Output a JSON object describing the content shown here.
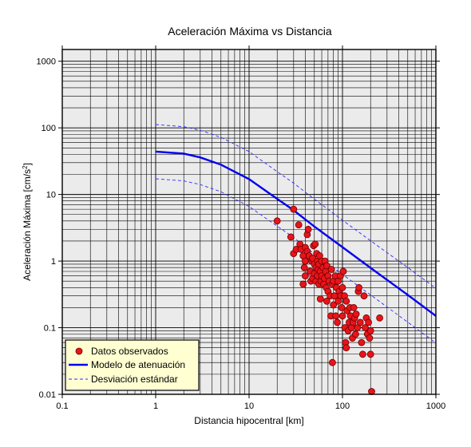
{
  "chart_data": {
    "type": "scatter",
    "title": "Aceleración Máxima vs Distancia",
    "xlabel": "Distancia hipocentral [km]",
    "ylabel_text": "Aceleración Máxima [cm/s",
    "ylabel_sup": "2",
    "ylabel_close": "]",
    "xscale": "log",
    "yscale": "log",
    "xlim": [
      0.1,
      1000
    ],
    "ylim": [
      0.01,
      1500
    ],
    "x_ticks": [
      0.1,
      1,
      10,
      100,
      1000
    ],
    "x_tick_labels": [
      "0.1",
      "1",
      "10",
      "100",
      "1000"
    ],
    "y_ticks": [
      0.01,
      0.1,
      1,
      10,
      100,
      1000
    ],
    "y_tick_labels": [
      "0.01",
      "0.1",
      "1",
      "10",
      "100",
      "1000"
    ],
    "grid": true,
    "legend_position": "bottom-left",
    "colors": {
      "background": "#ebebeb",
      "grid": "#000000",
      "points_fill": "#e8141a",
      "points_stroke": "#6b0000",
      "model": "#0000ee",
      "deviation": "#2b2bff",
      "legend_bg": "#ffffd2"
    },
    "series": [
      {
        "name": "Datos observados",
        "kind": "points",
        "x": [
          20,
          28,
          30,
          30,
          32,
          34,
          35,
          36,
          38,
          38,
          39,
          40,
          40,
          40,
          42,
          42,
          43,
          44,
          45,
          46,
          47,
          48,
          48,
          49,
          50,
          50,
          51,
          52,
          52,
          53,
          54,
          54,
          55,
          56,
          56,
          57,
          58,
          58,
          59,
          60,
          60,
          62,
          63,
          64,
          65,
          66,
          67,
          68,
          68,
          70,
          70,
          72,
          74,
          75,
          76,
          78,
          78,
          80,
          80,
          82,
          84,
          85,
          86,
          88,
          90,
          90,
          92,
          95,
          96,
          98,
          100,
          100,
          102,
          105,
          106,
          108,
          110,
          110,
          112,
          115,
          118,
          120,
          122,
          125,
          128,
          130,
          132,
          135,
          138,
          140,
          145,
          148,
          150,
          155,
          160,
          165,
          170,
          175,
          180,
          185,
          190,
          195,
          200,
          200,
          205,
          250
        ],
        "y": [
          4.0,
          2.3,
          6.0,
          1.3,
          1.5,
          3.5,
          1.8,
          1.5,
          1.2,
          0.45,
          0.8,
          1.6,
          1.0,
          0.6,
          2.5,
          1.4,
          3.0,
          1.2,
          0.7,
          0.5,
          1.0,
          1.1,
          0.55,
          1.7,
          0.9,
          0.65,
          1.8,
          0.8,
          0.5,
          1.3,
          1.0,
          0.6,
          0.75,
          0.9,
          0.45,
          1.2,
          0.7,
          0.27,
          0.5,
          1.0,
          0.6,
          0.8,
          0.45,
          0.55,
          1.0,
          0.7,
          0.4,
          0.85,
          0.25,
          0.6,
          0.35,
          0.5,
          0.3,
          0.15,
          0.75,
          0.45,
          0.03,
          0.22,
          0.5,
          0.3,
          0.6,
          0.15,
          0.4,
          0.12,
          0.25,
          0.5,
          0.35,
          0.6,
          0.3,
          0.2,
          0.4,
          0.15,
          0.7,
          0.3,
          0.1,
          0.06,
          0.25,
          0.05,
          0.18,
          0.09,
          0.12,
          0.2,
          0.15,
          0.1,
          0.07,
          0.12,
          0.2,
          0.14,
          0.08,
          0.16,
          0.1,
          0.35,
          0.4,
          0.12,
          0.06,
          0.04,
          0.3,
          0.1,
          0.14,
          0.08,
          0.12,
          0.07,
          0.09,
          0.04,
          0.011,
          0.14
        ]
      },
      {
        "name": "Modelo de atenuación",
        "kind": "line",
        "x": [
          1,
          2,
          3,
          5,
          10,
          20,
          30,
          50,
          100,
          200,
          500,
          1000
        ],
        "y": [
          44,
          41,
          36,
          28,
          17,
          8.6,
          5.8,
          3.3,
          1.62,
          0.79,
          0.31,
          0.15
        ]
      },
      {
        "name": "Desviación estándar",
        "kind": "dashed",
        "x": [
          1,
          2,
          3,
          5,
          10,
          20,
          30,
          50,
          100,
          200,
          500,
          1000
        ],
        "y": [
          112,
          104,
          92,
          72,
          44,
          22,
          14.8,
          8.5,
          4.1,
          2.02,
          0.8,
          0.39
        ]
      },
      {
        "name": "",
        "kind": "dashed",
        "x": [
          1,
          2,
          3,
          5,
          10,
          20,
          30,
          50,
          100,
          200,
          500,
          1000
        ],
        "y": [
          17.2,
          16,
          14.1,
          11,
          6.6,
          3.35,
          2.26,
          1.28,
          0.63,
          0.31,
          0.121,
          0.059
        ]
      }
    ]
  }
}
